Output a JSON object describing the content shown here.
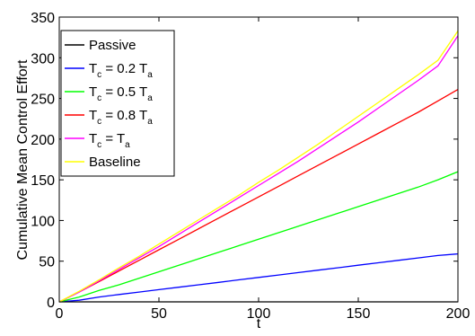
{
  "chart_data": {
    "type": "line",
    "title": "",
    "xlabel": "t",
    "ylabel": "Cumulative Mean Control Effort",
    "xlim": [
      0,
      200
    ],
    "ylim": [
      0,
      350
    ],
    "x_ticks": [
      "0",
      "50",
      "100",
      "150",
      "200"
    ],
    "y_ticks": [
      "0",
      "50",
      "100",
      "150",
      "200",
      "250",
      "300",
      "350"
    ],
    "grid": false,
    "legend_position": "top-left",
    "series": [
      {
        "name": "Passive",
        "color": "#000000",
        "x": [
          0,
          200
        ],
        "y": [
          0,
          0
        ]
      },
      {
        "name": "Tc = 0.2 Ta",
        "legend": {
          "a": "T",
          "a_sub": "c",
          "b": " = 0.2 T",
          "b_sub": "a"
        },
        "color": "#0000ff",
        "x": [
          0,
          10,
          20,
          30,
          40,
          50,
          60,
          70,
          80,
          90,
          100,
          110,
          120,
          130,
          140,
          150,
          160,
          170,
          180,
          190,
          200
        ],
        "y": [
          0,
          2,
          6,
          9,
          12,
          15,
          18,
          21,
          24,
          27,
          30,
          33,
          36,
          39,
          42,
          45,
          48,
          51,
          54,
          57,
          59
        ]
      },
      {
        "name": "Tc = 0.5 Ta",
        "legend": {
          "a": "T",
          "a_sub": "c",
          "b": " = 0.5 T",
          "b_sub": "a"
        },
        "color": "#00ff00",
        "x": [
          0,
          10,
          20,
          30,
          40,
          50,
          60,
          70,
          80,
          90,
          100,
          110,
          120,
          130,
          140,
          150,
          160,
          170,
          180,
          190,
          200
        ],
        "y": [
          0,
          6,
          14,
          21,
          29,
          37,
          45,
          53,
          61,
          69,
          77,
          85,
          93,
          101,
          109,
          117,
          125,
          133,
          141,
          150,
          160
        ]
      },
      {
        "name": "Tc = 0.8 Ta",
        "legend": {
          "a": "T",
          "a_sub": "c",
          "b": " = 0.8 T",
          "b_sub": "a"
        },
        "color": "#ff0000",
        "x": [
          0,
          10,
          20,
          30,
          40,
          50,
          60,
          70,
          80,
          90,
          100,
          110,
          120,
          130,
          140,
          150,
          160,
          170,
          180,
          190,
          200
        ],
        "y": [
          0,
          12,
          25,
          38,
          51,
          64,
          77,
          90,
          103,
          116,
          129,
          142,
          155,
          168,
          181,
          194,
          207,
          220,
          233,
          247,
          261
        ]
      },
      {
        "name": "Tc = Ta",
        "legend": {
          "a": "T",
          "a_sub": "c",
          "b": " = T",
          "b_sub": "a"
        },
        "color": "#ff00ff",
        "x": [
          0,
          10,
          20,
          30,
          40,
          50,
          60,
          70,
          80,
          90,
          100,
          110,
          120,
          130,
          140,
          150,
          160,
          170,
          180,
          190,
          200
        ],
        "y": [
          0,
          12,
          26,
          40,
          54,
          68,
          83,
          98,
          113,
          128,
          143,
          158,
          173,
          189,
          205,
          221,
          238,
          255,
          272,
          290,
          327
        ]
      },
      {
        "name": "Baseline",
        "color": "#ffff00",
        "x": [
          0,
          10,
          20,
          30,
          40,
          50,
          60,
          70,
          80,
          90,
          100,
          110,
          120,
          130,
          140,
          150,
          160,
          170,
          180,
          190,
          200
        ],
        "y": [
          0,
          13,
          27,
          42,
          56,
          71,
          86,
          101,
          116,
          131,
          147,
          162,
          178,
          194,
          211,
          228,
          245,
          262,
          279,
          297,
          333
        ]
      }
    ]
  }
}
